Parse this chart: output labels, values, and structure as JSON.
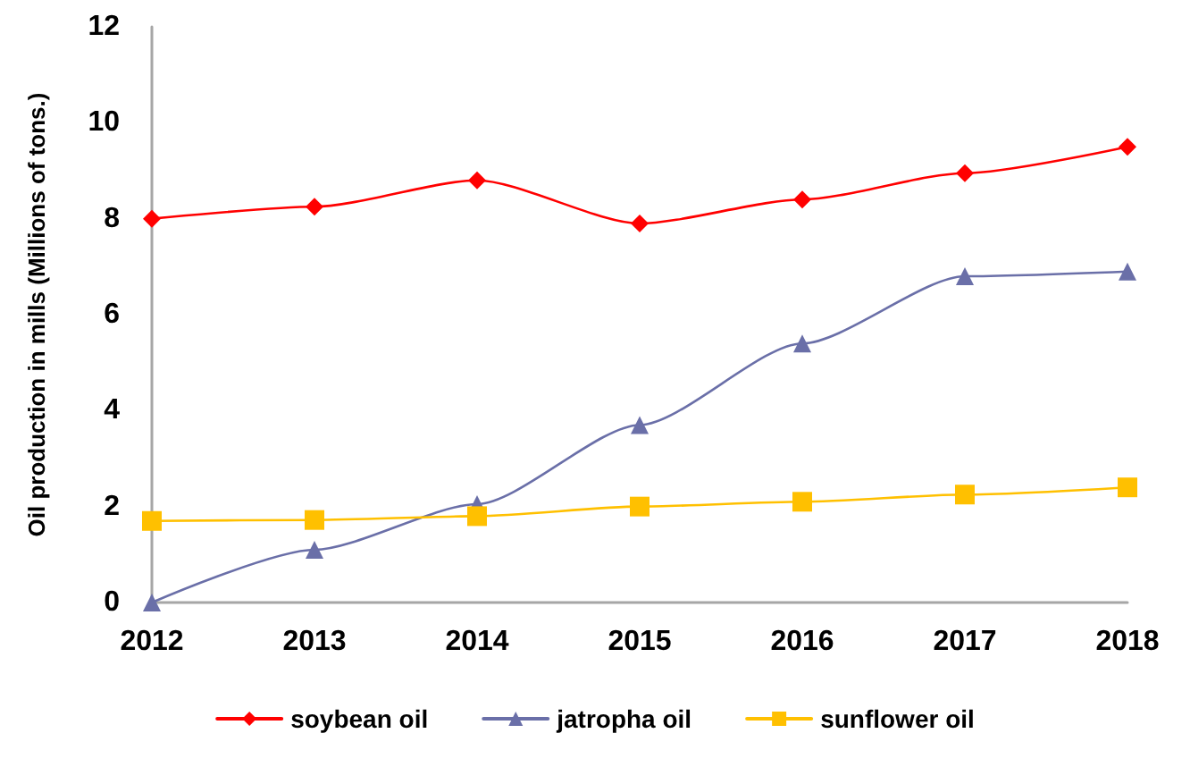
{
  "chart_data": {
    "type": "line",
    "ylabel": "Oil production in mills (Millions of tons.)",
    "categories": [
      "2012",
      "2013",
      "2014",
      "2015",
      "2016",
      "2017",
      "2018"
    ],
    "ylim": [
      0,
      12
    ],
    "yticks": [
      0,
      2,
      4,
      6,
      8,
      10,
      12
    ],
    "grid": false,
    "legend": "bottom",
    "line_style": "solid",
    "series": [
      {
        "name": "soybean oil",
        "color": "#ff0000",
        "marker": "diamond",
        "values": [
          8.0,
          8.25,
          8.8,
          7.9,
          8.4,
          8.95,
          9.5
        ]
      },
      {
        "name": "jatropha oil",
        "color": "#6a6fa8",
        "marker": "triangle",
        "values": [
          0,
          1.1,
          2.05,
          3.7,
          5.4,
          6.8,
          6.9
        ]
      },
      {
        "name": "sunflower oil",
        "color": "#ffc000",
        "marker": "square",
        "values": [
          1.7,
          1.72,
          1.8,
          2.0,
          2.1,
          2.25,
          2.4
        ]
      }
    ]
  }
}
